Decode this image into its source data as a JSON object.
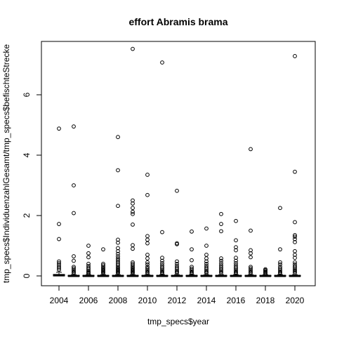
{
  "chart_data": {
    "type": "boxplot",
    "title": "effort Abramis brama",
    "xlabel": "tmp_specs$year",
    "ylabel": "tmp_specs$IndividuenzahlGesamt/tmp_specs$befischteStrecke",
    "categories": [
      2004,
      2005,
      2006,
      2007,
      2008,
      2009,
      2010,
      2011,
      2012,
      2013,
      2014,
      2015,
      2016,
      2017,
      2018,
      2019,
      2020
    ],
    "x_tick_labels": [
      "2004",
      "2006",
      "2008",
      "2010",
      "2012",
      "2014",
      "2016",
      "2018",
      "2020"
    ],
    "y_ticks": [
      0,
      2,
      4,
      6
    ],
    "ylim": [
      0,
      7.5
    ],
    "grid": false,
    "boxes": [
      {
        "year": 2004,
        "q1": 0.0,
        "median": 0.02,
        "q3": 0.05,
        "whisker_high": 0.12
      },
      {
        "year": 2005,
        "q1": 0.0,
        "median": 0.0,
        "q3": 0.02,
        "whisker_high": 0.04
      },
      {
        "year": 2006,
        "q1": 0.0,
        "median": 0.0,
        "q3": 0.02,
        "whisker_high": 0.04
      },
      {
        "year": 2007,
        "q1": 0.0,
        "median": 0.0,
        "q3": 0.02,
        "whisker_high": 0.04
      },
      {
        "year": 2008,
        "q1": 0.0,
        "median": 0.0,
        "q3": 0.02,
        "whisker_high": 0.04
      },
      {
        "year": 2009,
        "q1": 0.0,
        "median": 0.0,
        "q3": 0.02,
        "whisker_high": 0.04
      },
      {
        "year": 2010,
        "q1": 0.0,
        "median": 0.0,
        "q3": 0.02,
        "whisker_high": 0.04
      },
      {
        "year": 2011,
        "q1": 0.0,
        "median": 0.0,
        "q3": 0.02,
        "whisker_high": 0.04
      },
      {
        "year": 2012,
        "q1": 0.0,
        "median": 0.0,
        "q3": 0.02,
        "whisker_high": 0.04
      },
      {
        "year": 2013,
        "q1": 0.0,
        "median": 0.0,
        "q3": 0.02,
        "whisker_high": 0.04
      },
      {
        "year": 2014,
        "q1": 0.0,
        "median": 0.0,
        "q3": 0.02,
        "whisker_high": 0.04
      },
      {
        "year": 2015,
        "q1": 0.0,
        "median": 0.0,
        "q3": 0.02,
        "whisker_high": 0.04
      },
      {
        "year": 2016,
        "q1": 0.0,
        "median": 0.0,
        "q3": 0.02,
        "whisker_high": 0.04
      },
      {
        "year": 2017,
        "q1": 0.0,
        "median": 0.0,
        "q3": 0.02,
        "whisker_high": 0.04
      },
      {
        "year": 2018,
        "q1": 0.0,
        "median": 0.0,
        "q3": 0.02,
        "whisker_high": 0.04
      },
      {
        "year": 2019,
        "q1": 0.0,
        "median": 0.0,
        "q3": 0.02,
        "whisker_high": 0.04
      },
      {
        "year": 2020,
        "q1": 0.0,
        "median": 0.0,
        "q3": 0.02,
        "whisker_high": 0.04
      }
    ],
    "outliers": [
      {
        "year": 2004,
        "values": [
          4.88,
          1.72,
          1.22,
          0.48,
          0.42,
          0.36,
          0.3,
          0.25,
          0.2
        ]
      },
      {
        "year": 2005,
        "values": [
          4.95,
          3.0,
          2.08,
          0.65,
          0.5,
          0.3,
          0.25,
          0.2,
          0.16,
          0.12,
          0.09
        ]
      },
      {
        "year": 2006,
        "values": [
          1.0,
          0.75,
          0.62,
          0.4,
          0.33,
          0.27,
          0.22,
          0.17,
          0.13,
          0.1,
          0.08
        ]
      },
      {
        "year": 2007,
        "values": [
          0.88,
          0.4,
          0.35,
          0.3,
          0.26,
          0.22,
          0.18,
          0.15,
          0.12,
          0.09
        ]
      },
      {
        "year": 2008,
        "values": [
          4.6,
          3.5,
          2.32,
          1.2,
          1.1,
          0.92,
          0.82,
          0.73,
          0.65,
          0.58,
          0.52,
          0.46,
          0.4,
          0.35,
          0.3,
          0.26,
          0.22,
          0.18,
          0.15,
          0.12,
          0.09
        ]
      },
      {
        "year": 2009,
        "values": [
          7.52,
          2.5,
          2.4,
          2.25,
          2.12,
          2.05,
          1.7,
          1.02,
          0.9,
          0.45,
          0.4,
          0.35,
          0.3,
          0.26,
          0.22,
          0.18,
          0.15,
          0.12,
          0.09
        ]
      },
      {
        "year": 2010,
        "values": [
          3.35,
          2.68,
          1.32,
          1.2,
          1.08,
          0.7,
          0.58,
          0.45,
          0.38,
          0.3,
          0.25,
          0.2,
          0.16,
          0.12,
          0.09
        ]
      },
      {
        "year": 2011,
        "values": [
          7.07,
          1.45,
          0.6,
          0.5,
          0.42,
          0.35,
          0.29,
          0.24,
          0.19,
          0.15,
          0.11,
          0.08
        ]
      },
      {
        "year": 2012,
        "values": [
          2.82,
          1.08,
          1.05,
          0.48,
          0.4,
          0.33,
          0.27,
          0.22,
          0.17,
          0.13,
          0.1
        ]
      },
      {
        "year": 2013,
        "values": [
          1.47,
          0.88,
          0.52,
          0.3,
          0.24,
          0.19,
          0.15,
          0.11,
          0.08
        ]
      },
      {
        "year": 2014,
        "values": [
          1.57,
          1.0,
          0.7,
          0.58,
          0.48,
          0.4,
          0.33,
          0.27,
          0.22,
          0.17,
          0.13,
          0.1
        ]
      },
      {
        "year": 2015,
        "values": [
          2.05,
          1.72,
          1.48,
          0.58,
          0.5,
          0.42,
          0.35,
          0.29,
          0.23,
          0.18,
          0.14,
          0.1
        ]
      },
      {
        "year": 2016,
        "values": [
          1.82,
          1.18,
          0.95,
          0.85,
          0.6,
          0.5,
          0.42,
          0.35,
          0.29,
          0.24,
          0.19,
          0.15,
          0.11,
          0.08
        ]
      },
      {
        "year": 2017,
        "values": [
          4.2,
          1.5,
          0.85,
          0.75,
          0.62,
          0.3,
          0.25,
          0.2,
          0.16,
          0.12,
          0.09
        ]
      },
      {
        "year": 2018,
        "values": [
          0.22,
          0.19,
          0.16,
          0.13,
          0.1,
          0.08
        ]
      },
      {
        "year": 2019,
        "values": [
          2.25,
          0.88,
          0.45,
          0.38,
          0.3,
          0.24,
          0.19,
          0.15,
          0.11,
          0.08
        ]
      },
      {
        "year": 2020,
        "values": [
          7.28,
          3.45,
          1.78,
          1.35,
          1.3,
          1.22,
          1.12,
          0.82,
          0.7,
          0.6,
          0.45,
          0.38,
          0.32,
          0.27,
          0.22,
          0.18,
          0.14,
          0.1
        ]
      }
    ]
  }
}
